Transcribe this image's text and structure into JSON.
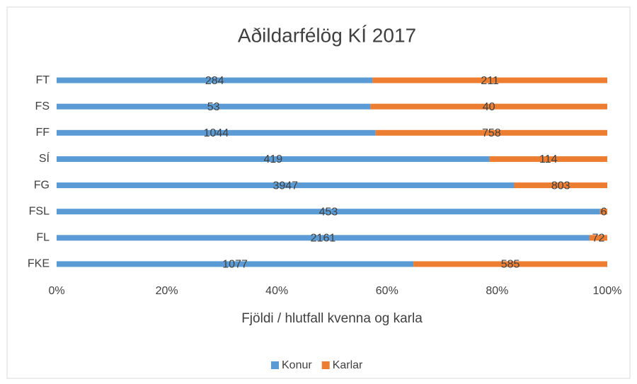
{
  "chart_data": {
    "type": "bar",
    "orientation": "horizontal",
    "stacked": "percent",
    "title": "Aðildarfélög KÍ 2017",
    "x_label": "Fjöldi / hlutfall kvenna og karla",
    "categories": [
      "FT",
      "FS",
      "FF",
      "SÍ",
      "FG",
      "FSL",
      "FL",
      "FKE"
    ],
    "series": [
      {
        "name": "Konur",
        "color": "#5b9bd5",
        "values": [
          284,
          53,
          1044,
          419,
          3947,
          453,
          2161,
          1077
        ]
      },
      {
        "name": "Karlar",
        "color": "#ed7d31",
        "values": [
          211,
          40,
          758,
          114,
          803,
          6,
          72,
          585
        ]
      }
    ],
    "xlim": [
      0,
      100
    ],
    "xticks": [
      {
        "value": 0,
        "label": "0%"
      },
      {
        "value": 20,
        "label": "20%"
      },
      {
        "value": 40,
        "label": "40%"
      },
      {
        "value": 60,
        "label": "60%"
      },
      {
        "value": 80,
        "label": "80%"
      },
      {
        "value": 100,
        "label": "100%"
      }
    ],
    "grid": false,
    "legend": "bottom"
  }
}
